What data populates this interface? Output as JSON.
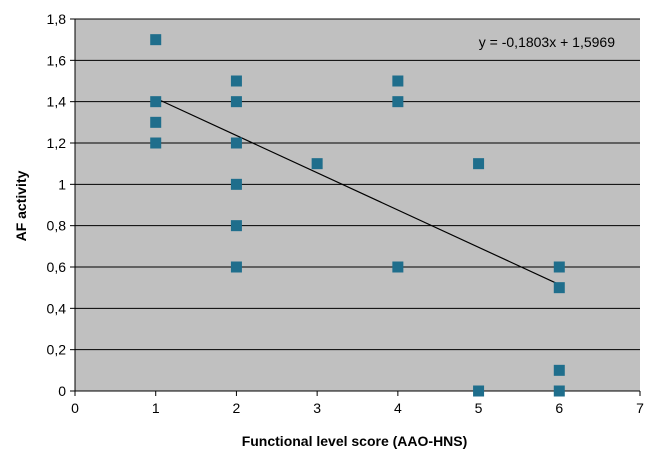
{
  "chart_data": {
    "type": "scatter",
    "title": "",
    "xlabel": "Functional level score (AAO-HNS)",
    "ylabel": "AF activity",
    "xlim": [
      0,
      7
    ],
    "ylim": [
      0,
      1.8
    ],
    "x_ticks": [
      0,
      1,
      2,
      3,
      4,
      5,
      6,
      7
    ],
    "y_ticks": [
      0,
      0.2,
      0.4,
      0.6,
      0.8,
      1,
      1.2,
      1.4,
      1.6,
      1.8
    ],
    "x_tick_labels": [
      "0",
      "1",
      "2",
      "3",
      "4",
      "5",
      "6",
      "7"
    ],
    "y_tick_labels": [
      "0",
      "0,2",
      "0,4",
      "0,6",
      "0,8",
      "1",
      "1,2",
      "1,4",
      "1,6",
      "1,8"
    ],
    "grid": "horizontal",
    "plot_background": "#c0c0c0",
    "marker_color": "#1f6e8c",
    "line_color": "#000000",
    "points": [
      {
        "x": 1,
        "y": 1.7
      },
      {
        "x": 1,
        "y": 1.4
      },
      {
        "x": 1,
        "y": 1.3
      },
      {
        "x": 1,
        "y": 1.2
      },
      {
        "x": 2,
        "y": 1.5
      },
      {
        "x": 2,
        "y": 1.4
      },
      {
        "x": 2,
        "y": 1.2
      },
      {
        "x": 2,
        "y": 1.0
      },
      {
        "x": 2,
        "y": 0.8
      },
      {
        "x": 2,
        "y": 0.6
      },
      {
        "x": 3,
        "y": 1.1
      },
      {
        "x": 4,
        "y": 1.5
      },
      {
        "x": 4,
        "y": 1.4
      },
      {
        "x": 4,
        "y": 0.6
      },
      {
        "x": 5,
        "y": 1.1
      },
      {
        "x": 5,
        "y": 0.0
      },
      {
        "x": 6,
        "y": 0.6
      },
      {
        "x": 6,
        "y": 0.5
      },
      {
        "x": 6,
        "y": 0.1
      },
      {
        "x": 6,
        "y": 0.0
      }
    ],
    "trendline": {
      "slope": -0.1803,
      "intercept": 1.5969,
      "x_range": [
        1,
        6
      ],
      "equation": "y = -0,1803x + 1,5969"
    }
  }
}
